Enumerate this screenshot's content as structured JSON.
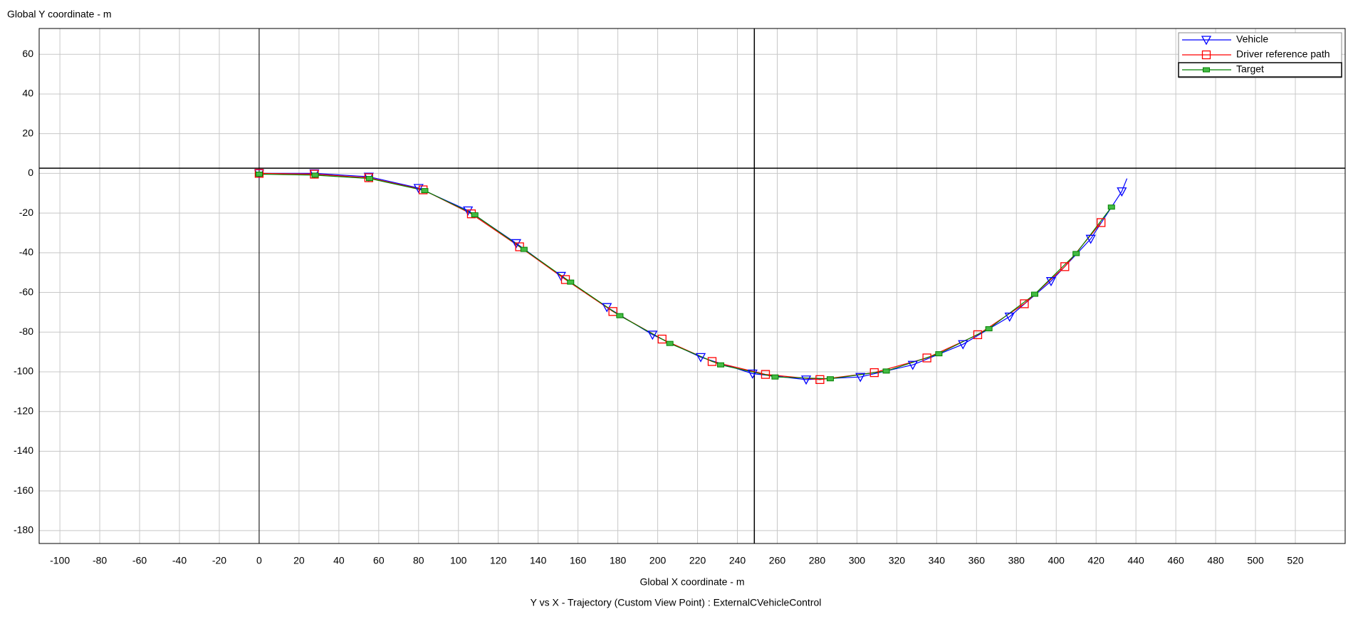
{
  "chart_data": {
    "type": "line",
    "y_axis_title": "Global Y coordinate - m",
    "x_axis_title": "Global X coordinate - m",
    "title": "Y vs X - Trajectory (Custom View Point) : ExternalCVehicleControl",
    "xlim": [
      -110.4,
      545
    ],
    "ylim": [
      -186.5,
      73
    ],
    "xticks": [
      -100,
      -80,
      -60,
      -40,
      -20,
      0,
      20,
      40,
      60,
      80,
      100,
      120,
      140,
      160,
      180,
      200,
      220,
      240,
      260,
      280,
      300,
      320,
      340,
      360,
      380,
      400,
      420,
      440,
      460,
      480,
      500,
      520
    ],
    "yticks": [
      60,
      40,
      20,
      0,
      -20,
      -40,
      -60,
      -80,
      -100,
      -120,
      -140,
      -160,
      -180
    ],
    "grid": true,
    "crosshair": {
      "x": 248.5,
      "y": 2.6
    },
    "legend": "upper right",
    "series": [
      {
        "name": "Vehicle",
        "color": "#0000ff",
        "marker": "triangle-down",
        "x": [
          0,
          27.7,
          55,
          80,
          104.8,
          129,
          151.5,
          174.5,
          197.4,
          221.6,
          247.6,
          274.5,
          301.7,
          328,
          353.2,
          376.6,
          397.4,
          417.3,
          432.9,
          435.5
        ],
        "y": [
          0,
          0,
          -1.7,
          -7.4,
          -18.7,
          -35.2,
          -51.7,
          -67.4,
          -81.3,
          -92.6,
          -100.9,
          -103.9,
          -102.6,
          -96.5,
          -86.1,
          -72.2,
          -54.3,
          -33,
          -9.1,
          -2.6
        ]
      },
      {
        "name": "Driver reference path",
        "color": "#ff0000",
        "marker": "square",
        "x": [
          0,
          27.7,
          55,
          82.3,
          106.5,
          130.7,
          153.7,
          177.5,
          202.2,
          227.3,
          254.1,
          281.4,
          308.7,
          335.1,
          360.6,
          384,
          404.3,
          422.5
        ],
        "y": [
          0,
          -0.4,
          -2.2,
          -8.3,
          -20.4,
          -37,
          -53.5,
          -69.6,
          -83.5,
          -94.8,
          -101.3,
          -103.9,
          -100.4,
          -93,
          -81.3,
          -65.7,
          -47,
          -24.8
        ]
      },
      {
        "name": "Target",
        "color": "#008000",
        "marker": "small-square",
        "x": [
          0,
          28.1,
          55.4,
          83.1,
          108.2,
          132.9,
          156.3,
          181,
          206.1,
          231.6,
          258.9,
          286.6,
          314.7,
          341.1,
          366.2,
          389.2,
          410,
          427.7
        ],
        "y": [
          -0.4,
          -0.9,
          -2.6,
          -8.7,
          -20.9,
          -38.3,
          -54.8,
          -71.7,
          -85.7,
          -96.5,
          -102.6,
          -103.5,
          -99.6,
          -90.9,
          -78.3,
          -60.9,
          -40.4,
          -17
        ]
      }
    ]
  }
}
